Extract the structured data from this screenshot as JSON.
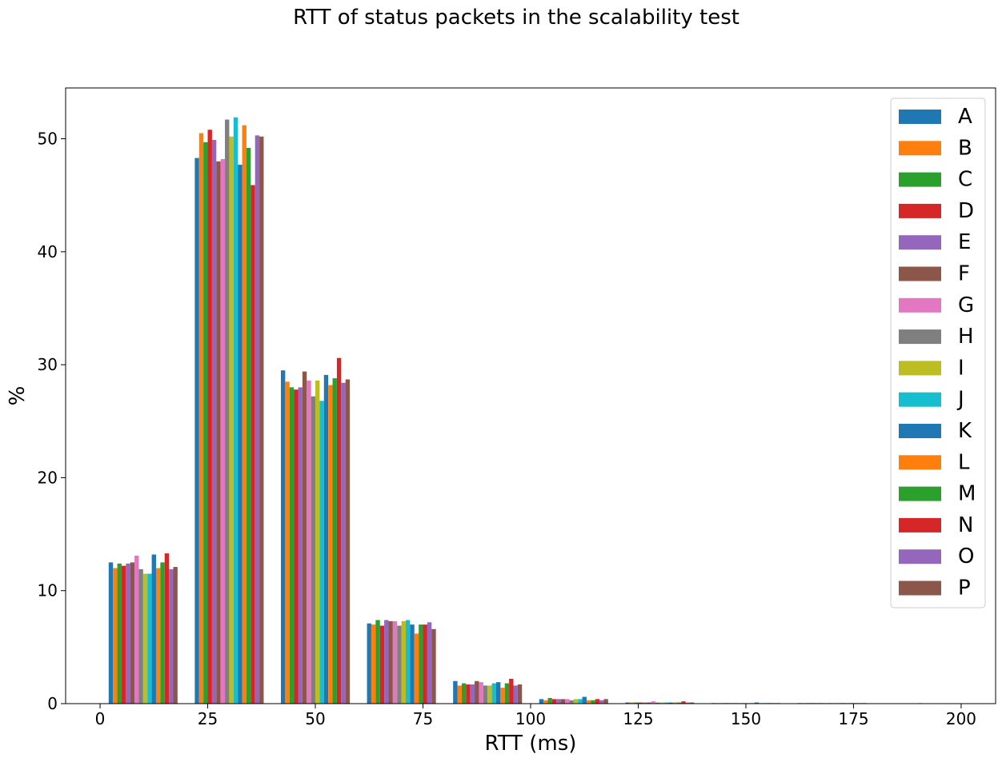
{
  "chart_data": {
    "type": "bar",
    "title": "RTT of status packets in the scalability test",
    "xlabel": "RTT (ms)",
    "ylabel": "%",
    "xlim": [
      -8,
      208
    ],
    "ylim": [
      0,
      54.5
    ],
    "xticks": [
      "0",
      "25",
      "50",
      "75",
      "100",
      "125",
      "150",
      "175",
      "200"
    ],
    "xtick_values": [
      0,
      25,
      50,
      75,
      100,
      125,
      150,
      175,
      200
    ],
    "yticks": [
      "0",
      "10",
      "20",
      "30",
      "40",
      "50"
    ],
    "ytick_values": [
      0,
      10,
      20,
      30,
      40,
      50
    ],
    "grid": false,
    "legend_position": "top-right",
    "bin_centers": [
      10,
      30,
      50,
      70,
      90,
      110,
      130,
      150,
      170,
      190
    ],
    "bar_width": 1,
    "series": [
      {
        "name": "A",
        "color": "#1f77b4",
        "values": [
          12.5,
          48.3,
          29.5,
          7.1,
          2.0,
          0.4,
          0.1,
          0.05,
          0.05,
          0.03
        ]
      },
      {
        "name": "B",
        "color": "#ff7f0e",
        "values": [
          12.0,
          50.5,
          28.5,
          7.0,
          1.6,
          0.3,
          0.1,
          0.05,
          0.05,
          0.03
        ]
      },
      {
        "name": "C",
        "color": "#2ca02c",
        "values": [
          12.4,
          49.7,
          28.0,
          7.4,
          1.8,
          0.5,
          0.1,
          0.05,
          0.05,
          0.03
        ]
      },
      {
        "name": "D",
        "color": "#d62728",
        "values": [
          12.2,
          50.8,
          27.8,
          6.9,
          1.7,
          0.4,
          0.1,
          0.05,
          0.05,
          0.03
        ]
      },
      {
        "name": "E",
        "color": "#9467bd",
        "values": [
          12.4,
          49.9,
          28.0,
          7.4,
          1.7,
          0.4,
          0.1,
          0.05,
          0.05,
          0.03
        ]
      },
      {
        "name": "F",
        "color": "#8c564b",
        "values": [
          12.5,
          48.0,
          29.4,
          7.3,
          2.0,
          0.4,
          0.1,
          0.05,
          0.05,
          0.03
        ]
      },
      {
        "name": "G",
        "color": "#e377c2",
        "values": [
          13.1,
          48.2,
          28.6,
          7.3,
          1.9,
          0.4,
          0.2,
          0.05,
          0.05,
          0.03
        ]
      },
      {
        "name": "H",
        "color": "#7f7f7f",
        "values": [
          11.9,
          51.7,
          27.2,
          6.9,
          1.6,
          0.3,
          0.1,
          0.05,
          0.05,
          0.03
        ]
      },
      {
        "name": "I",
        "color": "#bcbd22",
        "values": [
          11.5,
          50.2,
          28.6,
          7.3,
          1.6,
          0.4,
          0.1,
          0.05,
          0.05,
          0.05
        ]
      },
      {
        "name": "J",
        "color": "#17becf",
        "values": [
          11.5,
          51.9,
          26.8,
          7.4,
          1.8,
          0.4,
          0.1,
          0.05,
          0.05,
          0.03
        ]
      },
      {
        "name": "K",
        "color": "#1f77b4",
        "values": [
          13.2,
          47.7,
          29.1,
          7.0,
          1.9,
          0.6,
          0.1,
          0.1,
          0.05,
          0.03
        ]
      },
      {
        "name": "L",
        "color": "#ff7f0e",
        "values": [
          12.0,
          51.2,
          28.2,
          6.2,
          1.4,
          0.3,
          0.1,
          0.05,
          0.05,
          0.03
        ]
      },
      {
        "name": "M",
        "color": "#2ca02c",
        "values": [
          12.5,
          49.2,
          28.8,
          7.0,
          1.8,
          0.3,
          0.1,
          0.05,
          0.05,
          0.03
        ]
      },
      {
        "name": "N",
        "color": "#d62728",
        "values": [
          13.3,
          45.9,
          30.6,
          7.0,
          2.2,
          0.4,
          0.2,
          0.05,
          0.05,
          0.03
        ]
      },
      {
        "name": "O",
        "color": "#9467bd",
        "values": [
          11.9,
          50.3,
          28.4,
          7.2,
          1.6,
          0.3,
          0.1,
          0.05,
          0.05,
          0.03
        ]
      },
      {
        "name": "P",
        "color": "#8c564b",
        "values": [
          12.1,
          50.2,
          28.7,
          6.6,
          1.7,
          0.4,
          0.1,
          0.05,
          0.05,
          0.03
        ]
      }
    ]
  }
}
